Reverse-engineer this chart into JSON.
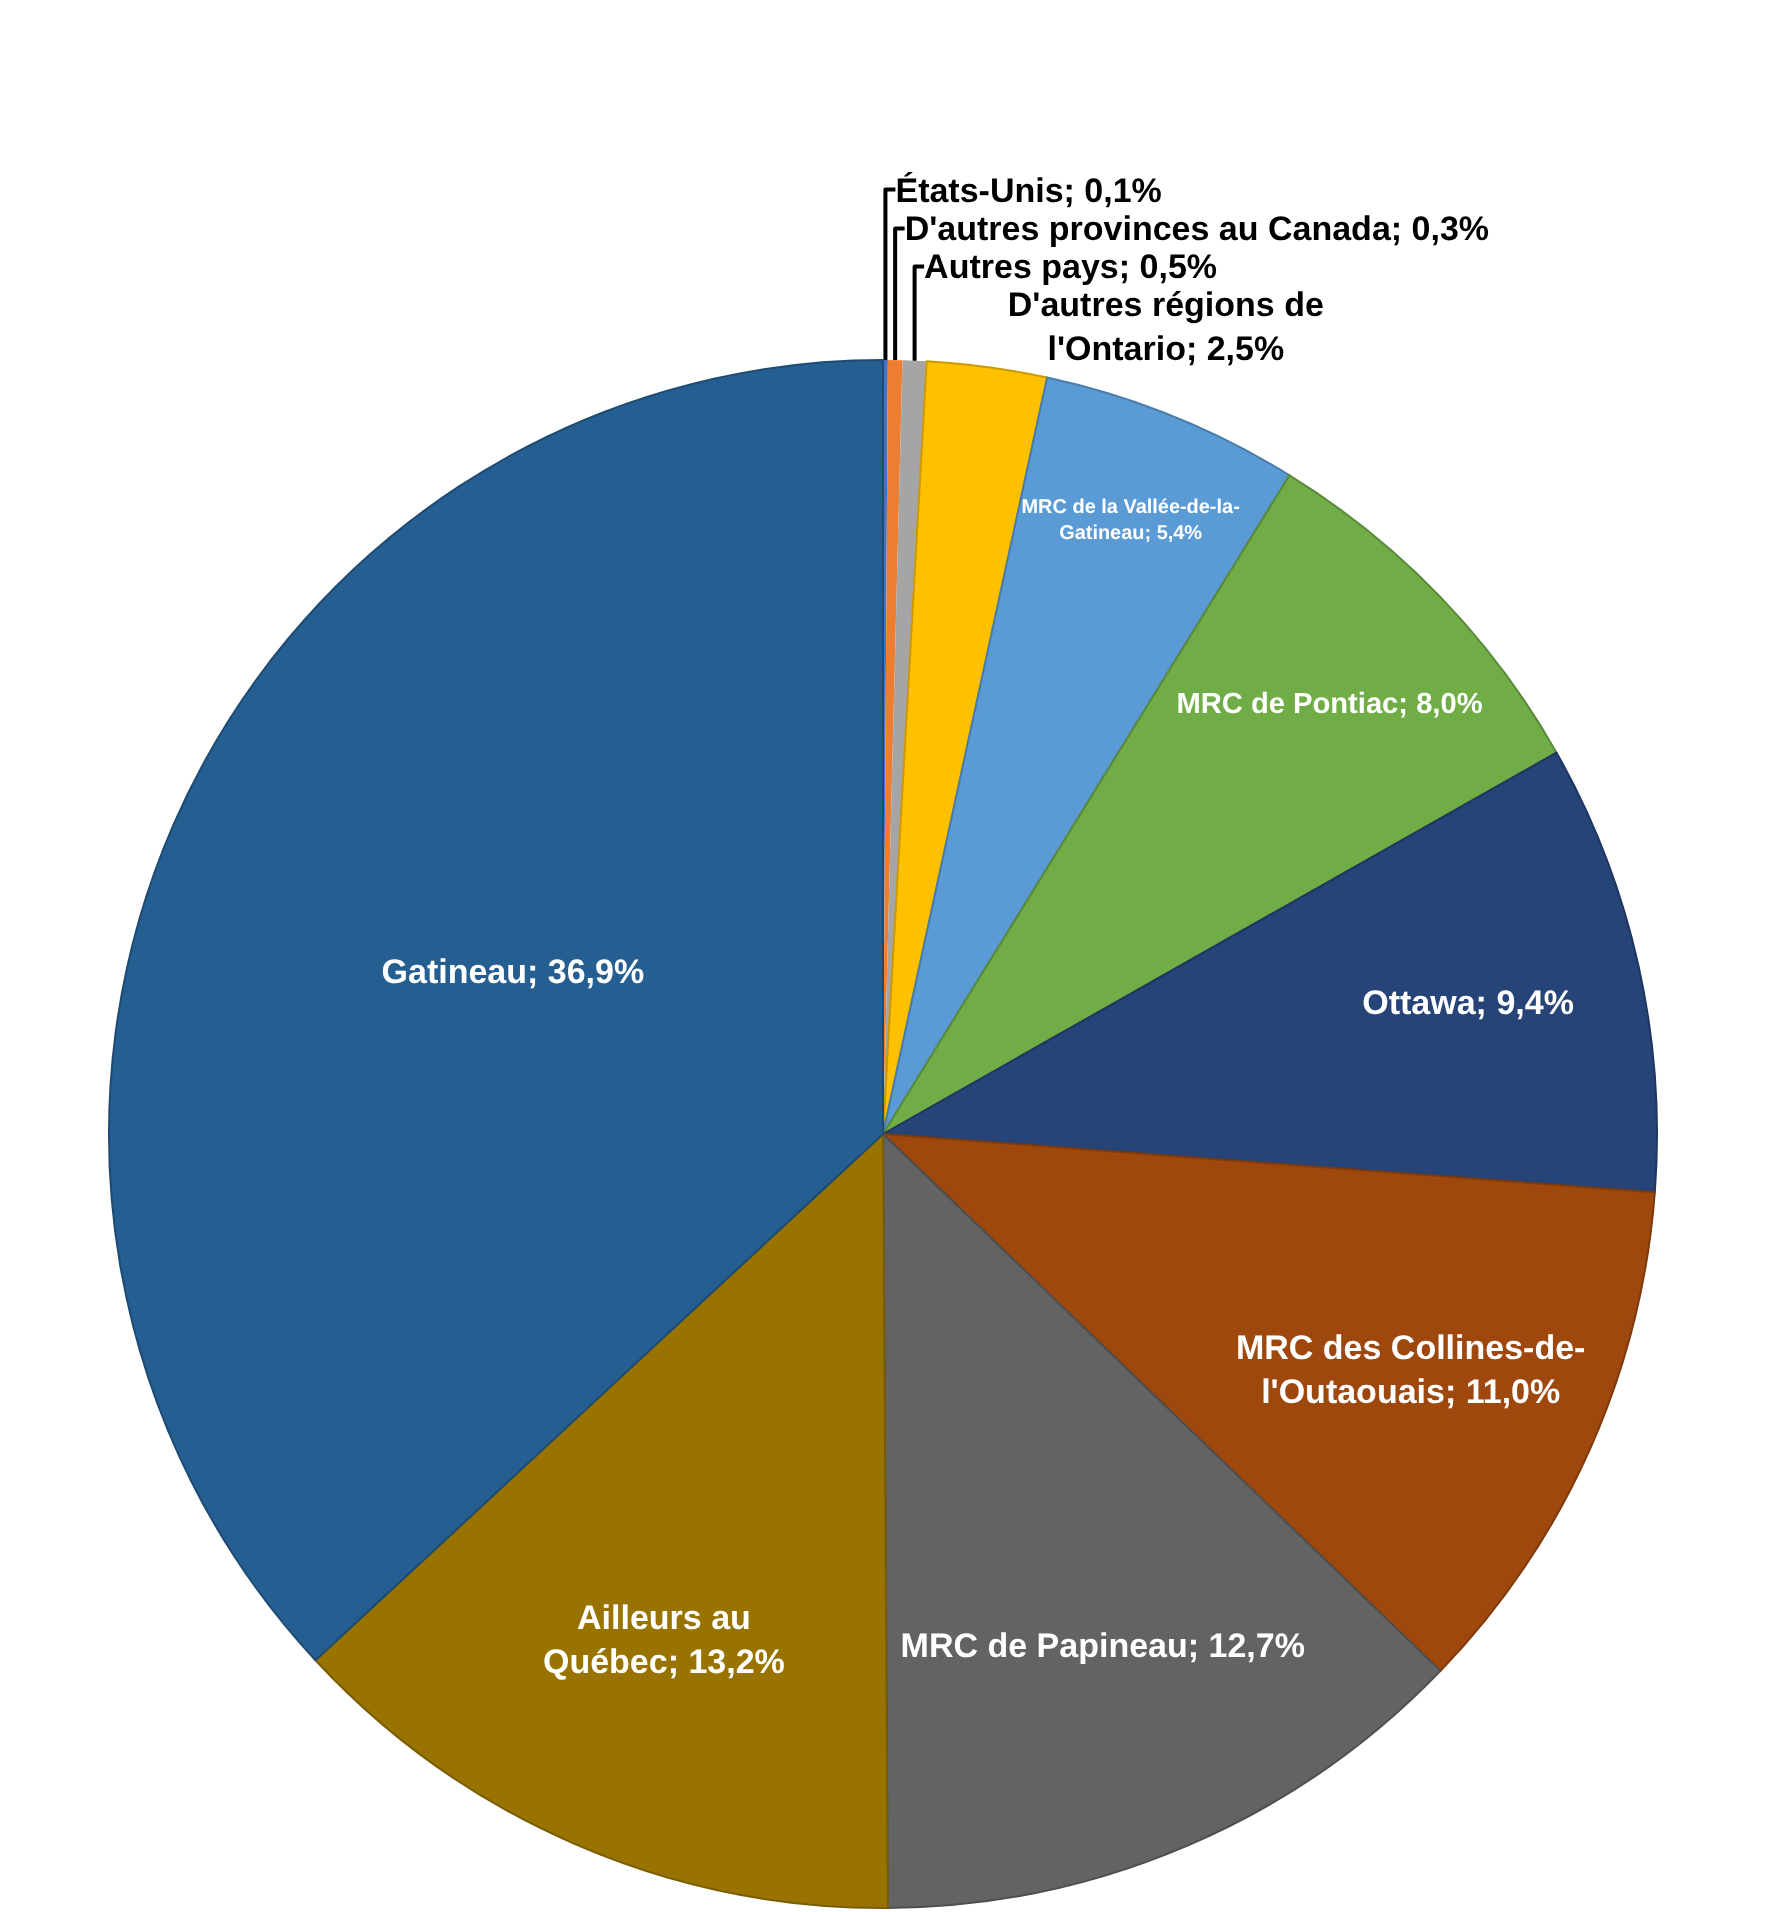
{
  "chart_data": {
    "type": "pie",
    "categories": [
      "États-Unis",
      "D'autres provinces au Canada",
      "Autres pays",
      "D'autres régions de l'Ontario",
      "MRC de la Vallée-de-la-Gatineau",
      "MRC de Pontiac",
      "Ottawa",
      "MRC des Collines-de-l'Outaouais",
      "MRC de Papineau",
      "Ailleurs au Québec",
      "Gatineau"
    ],
    "values": [
      0.1,
      0.3,
      0.5,
      2.5,
      5.4,
      8.0,
      9.4,
      11.0,
      12.7,
      13.2,
      36.9
    ],
    "value_labels": [
      "0,1%",
      "0,3%",
      "0,5%",
      "2,5%",
      "5,4%",
      "8,0%",
      "9,4%",
      "11,0%",
      "12,7%",
      "13,2%",
      "36,9%"
    ],
    "colors": [
      "#4472c4",
      "#ed7d31",
      "#a5a5a5",
      "#ffc000",
      "#5b9bd5",
      "#70ad47",
      "#264478",
      "#9e480e",
      "#636363",
      "#997300",
      "#255e91"
    ],
    "legend": false
  }
}
